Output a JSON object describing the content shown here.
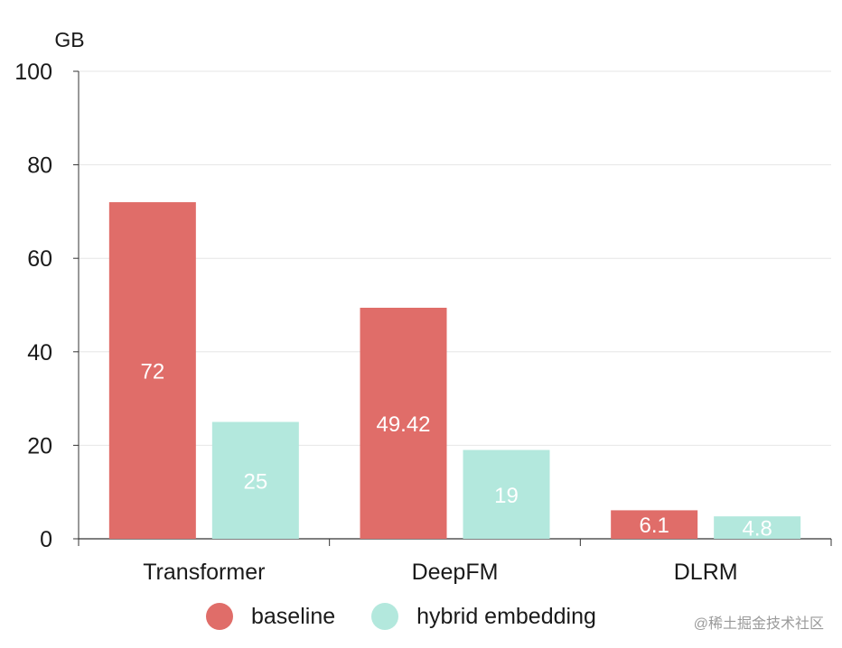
{
  "chart_data": {
    "type": "bar",
    "categories": [
      "Transformer",
      "DeepFM",
      "DLRM"
    ],
    "series": [
      {
        "name": "baseline",
        "values": [
          72,
          49.42,
          6.1
        ],
        "color": "#e06d69"
      },
      {
        "name": "hybrid embedding",
        "values": [
          25,
          19,
          4.8
        ],
        "color": "#b3e8dd"
      }
    ],
    "ylabel": "GB",
    "ylim": [
      0,
      100
    ],
    "yticks": [
      0,
      20,
      40,
      60,
      80,
      100
    ],
    "grid": true,
    "legend_position": "bottom"
  },
  "legend": {
    "items": [
      {
        "label": "baseline",
        "color": "#e06d69"
      },
      {
        "label": "hybrid embedding",
        "color": "#b3e8dd"
      }
    ]
  },
  "watermark": "@稀土掘金技术社区"
}
